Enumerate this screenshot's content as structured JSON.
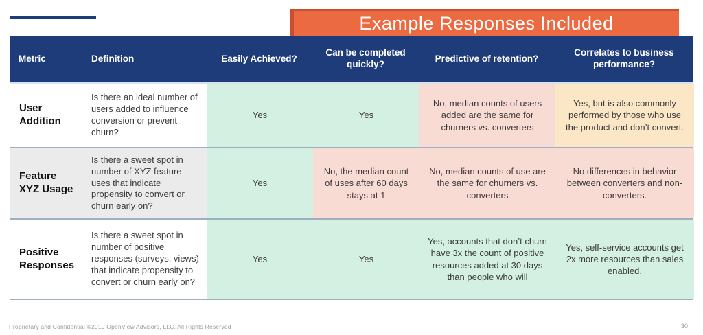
{
  "banner": {
    "title": "Example Responses Included"
  },
  "colors": {
    "navy": "#1e3c7a",
    "orange": "#ec6a42",
    "orange_dark": "#c94f2e",
    "green": "#d3f0e2",
    "pink": "#f8dcd3",
    "cream": "#fbe7c5",
    "gray_row": "#ebebeb",
    "white_row": "#ffffff",
    "divider": "#9eafc4"
  },
  "table": {
    "headers": [
      "Metric",
      "Definition",
      "Easily Achieved?",
      "Can be completed quickly?",
      "Predictive of retention?",
      "Correlates to business performance?"
    ],
    "rows": [
      {
        "metric": "User Addition",
        "definition": "Is there an ideal number of users added to influence conversion or prevent churn?",
        "label_bg": "#ffffff",
        "answers": [
          {
            "text": "Yes",
            "bg": "#d3f0e2"
          },
          {
            "text": "Yes",
            "bg": "#d3f0e2"
          },
          {
            "text": "No, median counts of users added are the same for churners vs. converters",
            "bg": "#f8dcd3"
          },
          {
            "text": "Yes, but is also commonly performed by those who use the product and don’t convert.",
            "bg": "#fbe7c5"
          }
        ]
      },
      {
        "metric": "Feature XYZ Usage",
        "definition": "Is there a sweet spot in number of XYZ feature uses that indicate propensity to convert or churn early on?",
        "label_bg": "#ebebeb",
        "answers": [
          {
            "text": "Yes",
            "bg": "#d3f0e2"
          },
          {
            "text": "No, the median count of uses after 60 days stays at 1",
            "bg": "#f8dcd3"
          },
          {
            "text": "No, median counts of use are the same for churners vs. converters",
            "bg": "#f8dcd3"
          },
          {
            "text": "No differences in behavior between converters and non-converters.",
            "bg": "#f8dcd3"
          }
        ]
      },
      {
        "metric": "Positive Responses",
        "definition": "Is there a sweet spot in number of positive responses (surveys, views) that indicate propensity to convert or churn early on?",
        "label_bg": "#ffffff",
        "answers": [
          {
            "text": "Yes",
            "bg": "#d3f0e2"
          },
          {
            "text": "Yes",
            "bg": "#d3f0e2"
          },
          {
            "text": "Yes, accounts that don’t churn have 3x the count of positive resources added at 30 days than people who will",
            "bg": "#d3f0e2"
          },
          {
            "text": "Yes, self-service accounts get 2x more resources than sales enabled.",
            "bg": "#d3f0e2"
          }
        ]
      }
    ]
  },
  "footer": {
    "left": "Proprietary and Confidential ©2019 OpenView Advisors, LLC. All Rights Reserved",
    "page": "30"
  }
}
